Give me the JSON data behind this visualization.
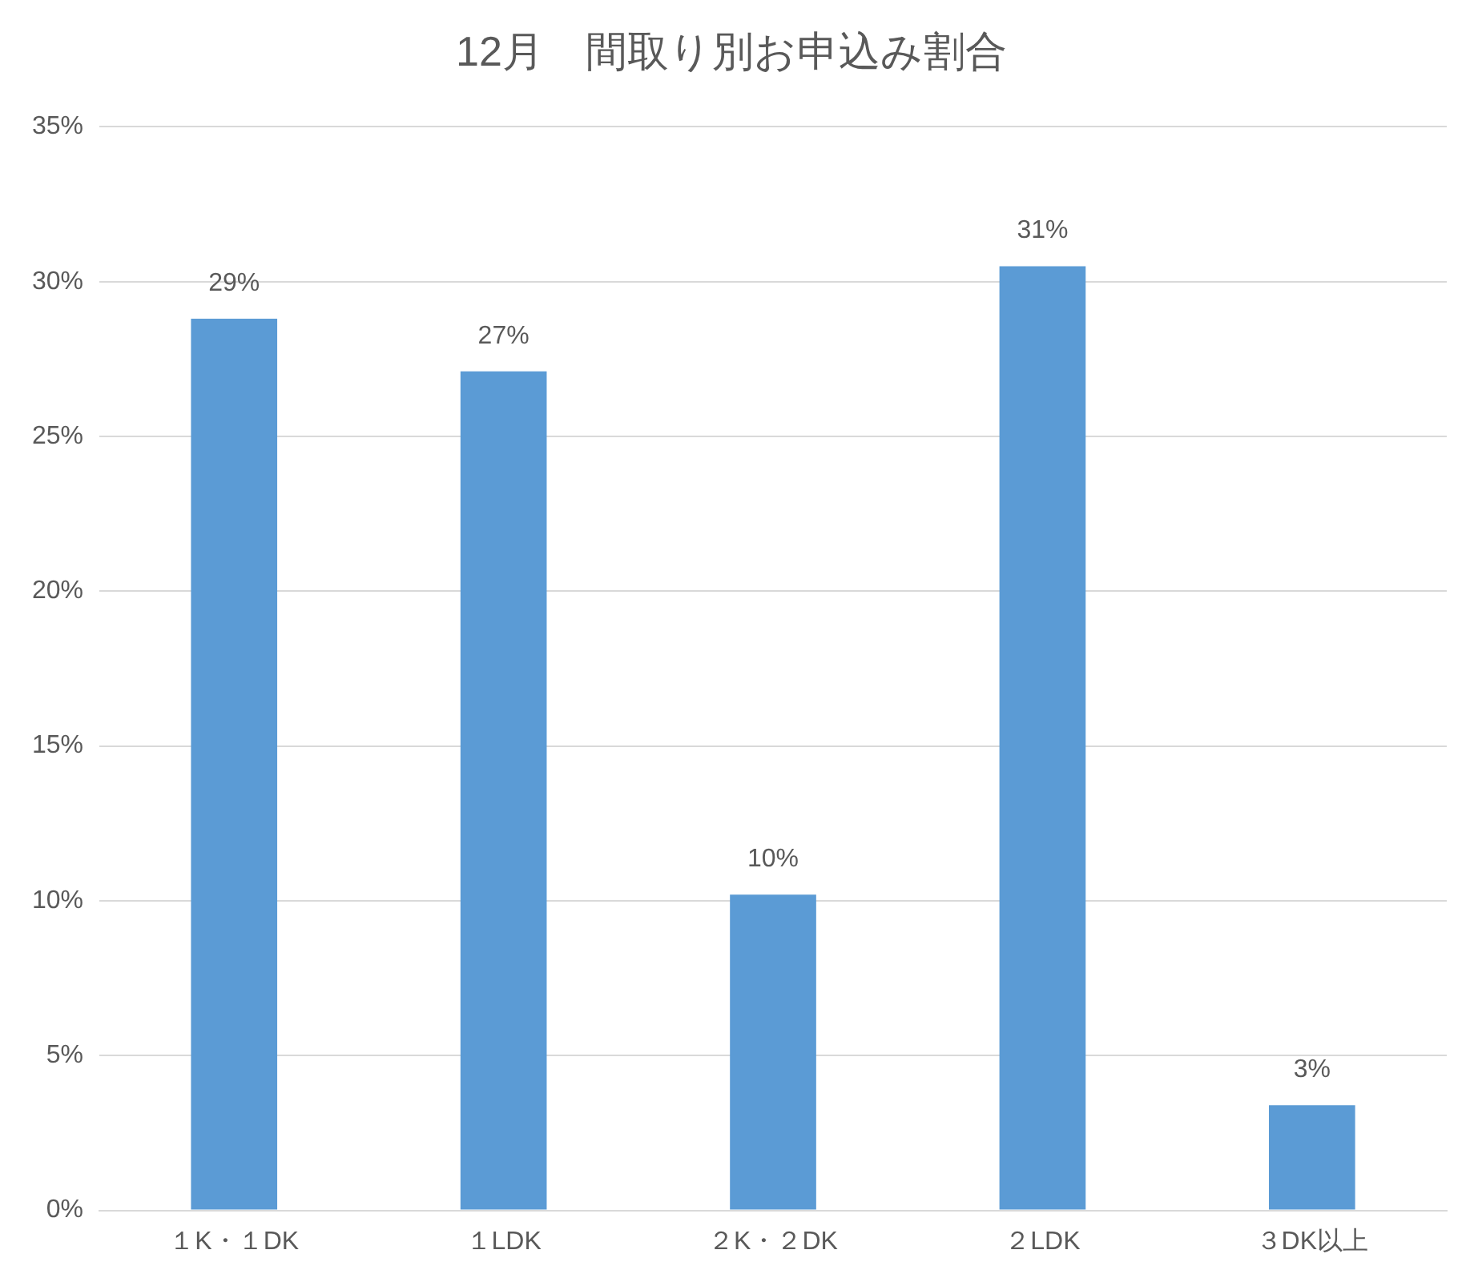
{
  "chart_data": {
    "type": "bar",
    "title": "12月　間取り別お申込み割合",
    "categories": [
      "１K・１DK",
      "１LDK",
      "２K・２DK",
      "２LDK",
      "３DK以上"
    ],
    "values": [
      28.8,
      27.1,
      10.2,
      30.5,
      3.4
    ],
    "value_labels": [
      "29%",
      "27%",
      "10%",
      "31%",
      "3%"
    ],
    "color": "#5b9bd5",
    "ylim": [
      0,
      35
    ],
    "yticks": [
      {
        "value": 0,
        "label": "0%"
      },
      {
        "value": 5,
        "label": "5%"
      },
      {
        "value": 10,
        "label": "10%"
      },
      {
        "value": 15,
        "label": "15%"
      },
      {
        "value": 20,
        "label": "20%"
      },
      {
        "value": 25,
        "label": "25%"
      },
      {
        "value": 30,
        "label": "30%"
      },
      {
        "value": 35,
        "label": "35%"
      }
    ],
    "grid": "y",
    "legend": false
  }
}
